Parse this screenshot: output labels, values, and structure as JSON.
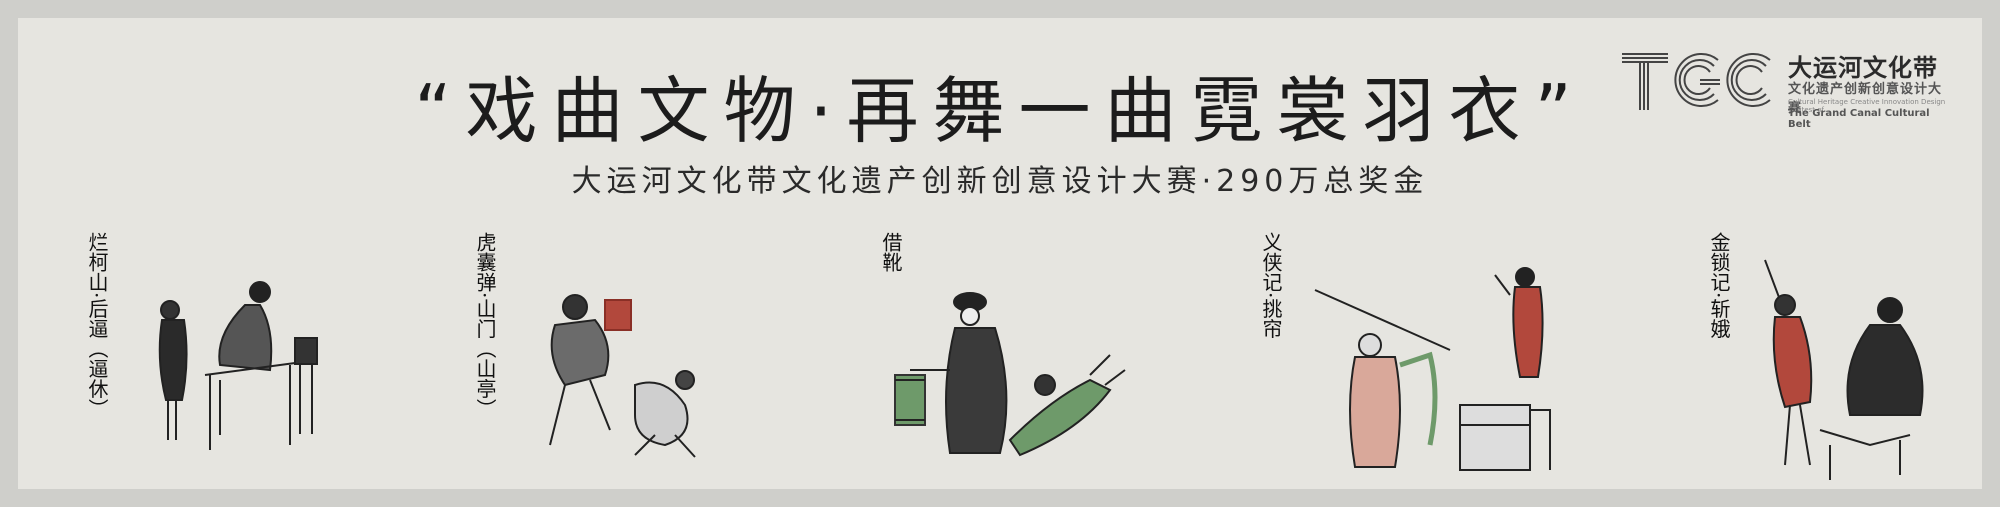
{
  "banner": {
    "title": "“戏曲文物·再舞一曲霓裳羽衣”",
    "subtitle": "大运河文化带文化遗产创新创意设计大赛·290万总奖金"
  },
  "logo": {
    "mark_text": "TGC",
    "name_cn": "大运河文化带",
    "subtitle_cn": "文化遗产创新创意设计大赛",
    "en_line1": "Cultural Heritage Creative Innovation Design Contest of",
    "en_line2": "The Grand Canal Cultural Belt"
  },
  "illustrations": [
    {
      "label": "烂柯山·后逼（逼休）"
    },
    {
      "label": "虎囊弹·山门（山亭）"
    },
    {
      "label": "借靴"
    },
    {
      "label": "义侠记·挑帘"
    },
    {
      "label": "金锁记·斩娥"
    }
  ],
  "colors": {
    "background": "#e6e5e0",
    "border": "#cfcfcb",
    "ink": "#1c1c1c",
    "accent_red": "#b2483c",
    "accent_green": "#6e9a6a"
  }
}
